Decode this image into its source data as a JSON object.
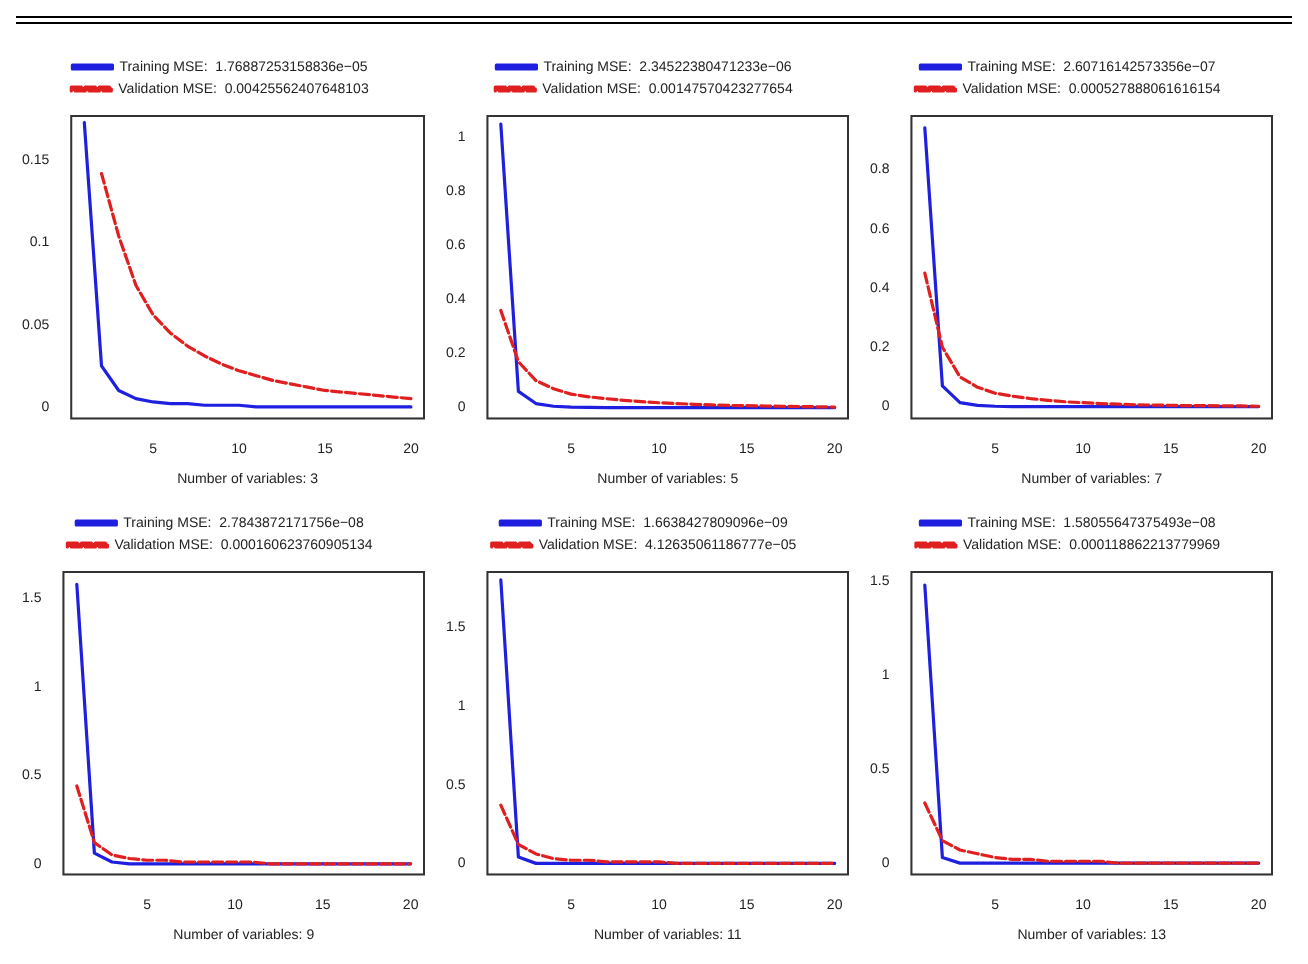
{
  "chart_data": [
    {
      "type": "line",
      "xlabel": "Number of variables: 3",
      "x": [
        1,
        2,
        3,
        4,
        5,
        6,
        7,
        8,
        9,
        10,
        11,
        12,
        13,
        14,
        15,
        16,
        17,
        18,
        19,
        20
      ],
      "xlim": [
        0.24,
        20.76
      ],
      "xticks": [
        5,
        10,
        15,
        20
      ],
      "ylim": [
        -0.007,
        0.177
      ],
      "yticks": [
        0,
        0.05,
        0.1,
        0.15
      ],
      "grid": false,
      "legend": "top",
      "series": [
        {
          "name": "Training MSE:  1.76887253158836e−05",
          "color": "#1f1fe0",
          "line_style": "solid",
          "values": [
            0.173,
            0.025,
            0.01,
            0.005,
            0.003,
            0.002,
            0.002,
            0.001,
            0.001,
            0.001,
            0,
            0,
            0,
            0,
            0,
            0,
            0,
            0,
            0,
            0
          ]
        },
        {
          "name": "Validation MSE:  0.00425562407648103",
          "color": "#e02020",
          "line_style": "dashed",
          "values": [
            null,
            0.142,
            0.104,
            0.074,
            0.056,
            0.045,
            0.037,
            0.031,
            0.026,
            0.022,
            0.019,
            0.016,
            0.014,
            0.012,
            0.01,
            0.009,
            0.008,
            0.007,
            0.006,
            0.005
          ]
        }
      ]
    },
    {
      "type": "line",
      "xlabel": "Number of variables: 5",
      "x": [
        1,
        2,
        3,
        4,
        5,
        6,
        7,
        8,
        9,
        10,
        11,
        12,
        13,
        14,
        15,
        16,
        17,
        18,
        19,
        20
      ],
      "xlim": [
        0.24,
        20.76
      ],
      "xticks": [
        5,
        10,
        15,
        20
      ],
      "ylim": [
        -0.04,
        1.08
      ],
      "yticks": [
        0,
        0.2,
        0.4,
        0.6,
        0.8,
        1.0
      ],
      "grid": false,
      "legend": "top",
      "series": [
        {
          "name": "Training MSE:  2.34522380471233e−06",
          "color": "#1f1fe0",
          "line_style": "solid",
          "values": [
            1.05,
            0.06,
            0.015,
            0.005,
            0.002,
            0.001,
            0,
            0,
            0,
            0,
            0,
            0,
            0,
            0,
            0,
            0,
            0,
            0,
            0,
            0
          ]
        },
        {
          "name": "Validation MSE:  0.00147570423277654",
          "color": "#e02020",
          "line_style": "dashed",
          "values": [
            0.36,
            0.17,
            0.1,
            0.07,
            0.05,
            0.04,
            0.033,
            0.027,
            0.022,
            0.018,
            0.015,
            0.012,
            0.01,
            0.008,
            0.007,
            0.006,
            0.005,
            0.004,
            0.003,
            0.002
          ]
        }
      ]
    },
    {
      "type": "line",
      "xlabel": "Number of variables: 7",
      "x": [
        1,
        2,
        3,
        4,
        5,
        6,
        7,
        8,
        9,
        10,
        11,
        12,
        13,
        14,
        15,
        16,
        17,
        18,
        19,
        20
      ],
      "xlim": [
        0.24,
        20.76
      ],
      "xticks": [
        5,
        10,
        15,
        20
      ],
      "ylim": [
        -0.04,
        0.98
      ],
      "yticks": [
        0,
        0.2,
        0.4,
        0.6,
        0.8
      ],
      "grid": false,
      "legend": "top",
      "series": [
        {
          "name": "Training MSE:  2.60716142573356e−07",
          "color": "#1f1fe0",
          "line_style": "solid",
          "values": [
            0.94,
            0.07,
            0.013,
            0.004,
            0.001,
            0,
            0,
            0,
            0,
            0,
            0,
            0,
            0,
            0,
            0,
            0,
            0,
            0,
            0,
            0
          ]
        },
        {
          "name": "Validation MSE:  0.000527888061616154",
          "color": "#e02020",
          "line_style": "dashed",
          "values": [
            0.45,
            0.2,
            0.1,
            0.065,
            0.045,
            0.035,
            0.027,
            0.021,
            0.016,
            0.013,
            0.01,
            0.008,
            0.006,
            0.005,
            0.004,
            0.003,
            0.003,
            0.002,
            0.002,
            0.001
          ]
        }
      ]
    },
    {
      "type": "line",
      "xlabel": "Number of variables: 9",
      "x": [
        1,
        2,
        3,
        4,
        5,
        6,
        7,
        8,
        9,
        10,
        11,
        12,
        13,
        14,
        15,
        16,
        17,
        18,
        19,
        20
      ],
      "xlim": [
        0.24,
        20.76
      ],
      "xticks": [
        5,
        10,
        15,
        20
      ],
      "ylim": [
        -0.06,
        1.65
      ],
      "yticks": [
        0,
        0.5,
        1.0,
        1.5
      ],
      "grid": false,
      "legend": "top",
      "series": [
        {
          "name": "Training MSE:  2.7843872171756e−08",
          "color": "#1f1fe0",
          "line_style": "solid",
          "values": [
            1.58,
            0.06,
            0.01,
            0,
            0,
            0,
            0,
            0,
            0,
            0,
            0,
            0,
            0,
            0,
            0,
            0,
            0,
            0,
            0,
            0
          ]
        },
        {
          "name": "Validation MSE:  0.000160623760905134",
          "color": "#e02020",
          "line_style": "dashed",
          "values": [
            0.44,
            0.12,
            0.05,
            0.03,
            0.02,
            0.02,
            0.01,
            0.01,
            0.01,
            0.01,
            0.01,
            0,
            0,
            0,
            0,
            0,
            0,
            0,
            0,
            0
          ]
        }
      ]
    },
    {
      "type": "line",
      "xlabel": "Number of variables: 11",
      "x": [
        1,
        2,
        3,
        4,
        5,
        6,
        7,
        8,
        9,
        10,
        11,
        12,
        13,
        14,
        15,
        16,
        17,
        18,
        19,
        20
      ],
      "xlim": [
        0.24,
        20.76
      ],
      "xticks": [
        5,
        10,
        15,
        20
      ],
      "ylim": [
        -0.07,
        1.85
      ],
      "yticks": [
        0,
        0.5,
        1.0,
        1.5
      ],
      "grid": false,
      "legend": "top",
      "series": [
        {
          "name": "Training MSE:  1.6638427809096e−09",
          "color": "#1f1fe0",
          "line_style": "solid",
          "values": [
            1.8,
            0.04,
            0,
            0,
            0,
            0,
            0,
            0,
            0,
            0,
            0,
            0,
            0,
            0,
            0,
            0,
            0,
            0,
            0,
            0
          ]
        },
        {
          "name": "Validation MSE:  4.12635061186777e−05",
          "color": "#e02020",
          "line_style": "dashed",
          "values": [
            0.37,
            0.12,
            0.06,
            0.03,
            0.02,
            0.02,
            0.01,
            0.01,
            0.01,
            0.01,
            0,
            0,
            0,
            0,
            0,
            0,
            0,
            0,
            0,
            0
          ]
        }
      ]
    },
    {
      "type": "line",
      "xlabel": "Number of variables: 13",
      "x": [
        1,
        2,
        3,
        4,
        5,
        6,
        7,
        8,
        9,
        10,
        11,
        12,
        13,
        14,
        15,
        16,
        17,
        18,
        19,
        20
      ],
      "xlim": [
        0.24,
        20.76
      ],
      "xticks": [
        5,
        10,
        15,
        20
      ],
      "ylim": [
        -0.06,
        1.55
      ],
      "yticks": [
        0,
        0.5,
        1.0,
        1.5
      ],
      "grid": false,
      "legend": "top",
      "series": [
        {
          "name": "Training MSE:  1.58055647375493e−08",
          "color": "#1f1fe0",
          "line_style": "solid",
          "values": [
            1.48,
            0.03,
            0,
            0,
            0,
            0,
            0,
            0,
            0,
            0,
            0,
            0,
            0,
            0,
            0,
            0,
            0,
            0,
            0,
            0
          ]
        },
        {
          "name": "Validation MSE:  0.000118862213779969",
          "color": "#e02020",
          "line_style": "dashed",
          "values": [
            0.32,
            0.12,
            0.07,
            0.05,
            0.03,
            0.02,
            0.02,
            0.01,
            0.01,
            0.01,
            0.01,
            0,
            0,
            0,
            0,
            0,
            0,
            0,
            0,
            0
          ]
        }
      ]
    }
  ]
}
